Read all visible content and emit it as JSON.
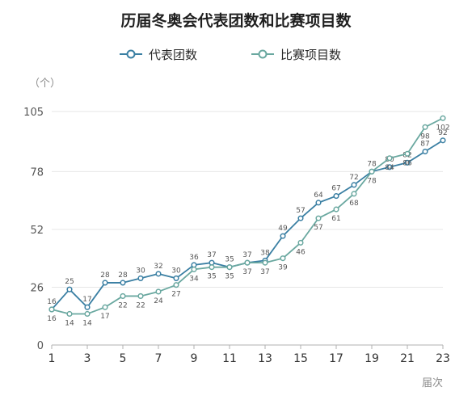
{
  "chart_data": {
    "type": "line",
    "title": "历届冬奥会代表团数和比赛项目数",
    "y_unit_label": "（个）",
    "x_unit_label": "届次",
    "x": [
      1,
      2,
      3,
      4,
      5,
      6,
      7,
      8,
      9,
      10,
      11,
      12,
      13,
      14,
      15,
      16,
      17,
      18,
      19,
      20,
      21,
      22,
      23
    ],
    "x_ticks": [
      "1",
      "3",
      "5",
      "7",
      "9",
      "11",
      "13",
      "15",
      "17",
      "19",
      "21",
      "23"
    ],
    "y_ticks": [
      "0",
      "26",
      "52",
      "78",
      "105"
    ],
    "ylim": [
      0,
      105
    ],
    "grid": true,
    "legend_position": "top-center",
    "series": [
      {
        "name": "代表团数",
        "color": "#3a7fa3",
        "values": [
          16,
          25,
          17,
          28,
          28,
          30,
          32,
          30,
          36,
          37,
          35,
          37,
          38,
          49,
          57,
          64,
          67,
          72,
          78,
          80,
          82,
          87,
          92
        ]
      },
      {
        "name": "比赛项目数",
        "color": "#6aa8a0",
        "values": [
          16,
          14,
          14,
          17,
          22,
          22,
          24,
          27,
          34,
          35,
          35,
          37,
          37,
          39,
          46,
          57,
          61,
          68,
          78,
          84,
          86,
          98,
          102
        ]
      }
    ],
    "data_labels": [
      {
        "series": 0,
        "values": [
          "16",
          "25",
          "17",
          "28",
          "28",
          "30",
          "32",
          "30",
          "36",
          "37",
          "35",
          "37",
          "38",
          "49",
          "57",
          "64",
          "67",
          "72",
          "78",
          "80",
          "82",
          "87",
          "92"
        ]
      },
      {
        "series": 1,
        "values": [
          "16",
          "14",
          "14",
          "17",
          "22",
          "22",
          "24",
          "27",
          "34",
          "35",
          "35",
          "37",
          "37",
          "39",
          "46",
          "57",
          "61",
          "68",
          "78",
          "84",
          "86",
          "98",
          "102"
        ]
      }
    ]
  }
}
